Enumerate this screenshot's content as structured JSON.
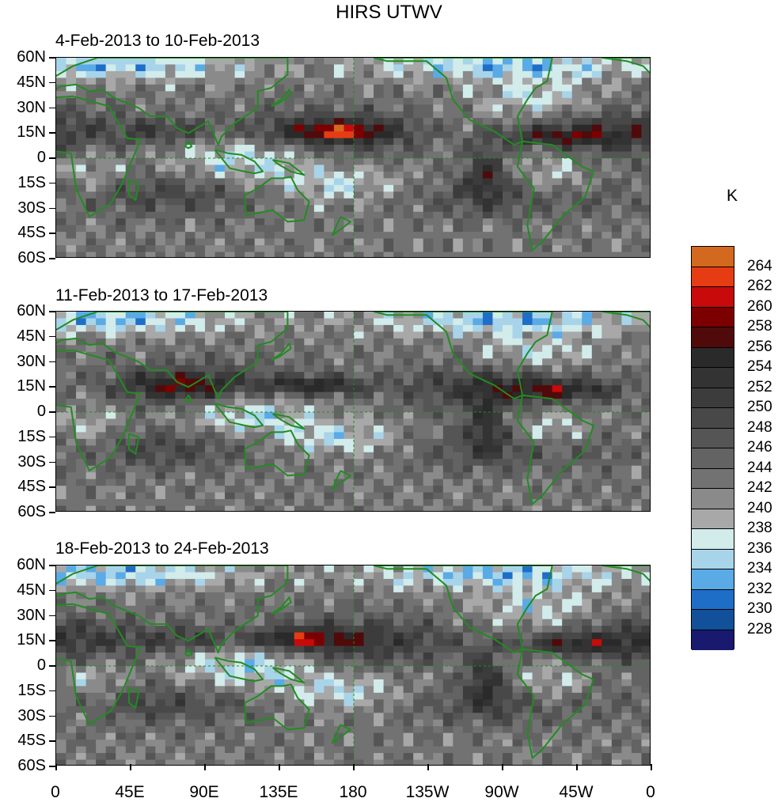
{
  "title": "HIRS UTWV",
  "panels": [
    {
      "label": "4-Feb-2013 to 10-Feb-2013",
      "seed": 3
    },
    {
      "label": "11-Feb-2013 to 17-Feb-2013",
      "seed": 7
    },
    {
      "label": "18-Feb-2013 to 24-Feb-2013",
      "seed": 11
    }
  ],
  "lat_labels": [
    "60N",
    "45N",
    "30N",
    "15N",
    "0",
    "15S",
    "30S",
    "45S",
    "60S"
  ],
  "lon_labels": [
    "0",
    "45E",
    "90E",
    "135E",
    "180",
    "135W",
    "90W",
    "45W",
    "0"
  ],
  "colorbar": {
    "unit": "K",
    "levels": [
      "264",
      "262",
      "260",
      "258",
      "256",
      "254",
      "252",
      "250",
      "248",
      "246",
      "244",
      "242",
      "240",
      "238",
      "236",
      "234",
      "232",
      "230",
      "228"
    ],
    "colors": [
      "#d2691e",
      "#e63c14",
      "#c80a0a",
      "#7d0000",
      "#500a0a",
      "#2a2a2a",
      "#333333",
      "#3c3c3c",
      "#484848",
      "#555555",
      "#636363",
      "#727272",
      "#8a8a8a",
      "#a8a8a8",
      "#d2ebeb",
      "#a8d4ea",
      "#5aaae6",
      "#1e6ec8",
      "#12509a",
      "#191970"
    ]
  },
  "style": {
    "coast_color": "#228b22"
  }
}
